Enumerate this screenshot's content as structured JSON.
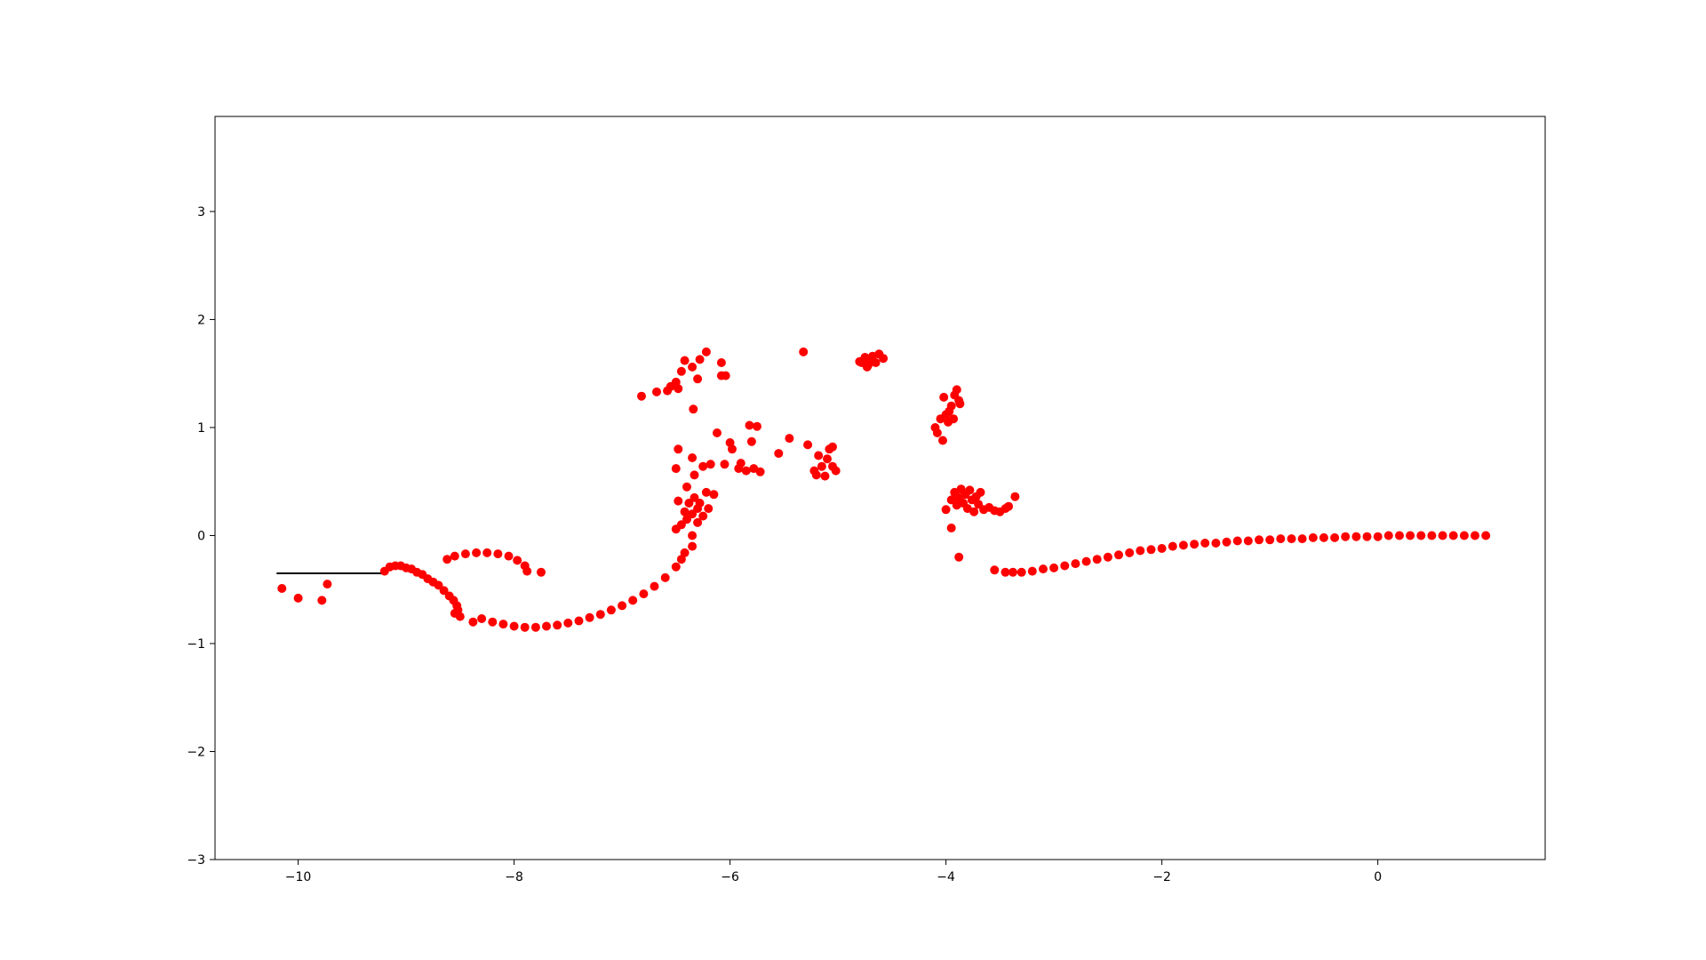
{
  "chart_data": {
    "type": "scatter",
    "title": "",
    "xlabel": "",
    "ylabel": "",
    "xlim": [
      -10.77,
      1.55
    ],
    "ylim": [
      -3.0,
      3.88
    ],
    "grid": false,
    "xticks": [
      {
        "value": -10,
        "label": "−10"
      },
      {
        "value": -8,
        "label": "−8"
      },
      {
        "value": -6,
        "label": "−6"
      },
      {
        "value": -4,
        "label": "−4"
      },
      {
        "value": -2,
        "label": "−2"
      },
      {
        "value": 0,
        "label": "0"
      }
    ],
    "yticks": [
      {
        "value": -3,
        "label": "−3"
      },
      {
        "value": -2,
        "label": "−2"
      },
      {
        "value": -1,
        "label": "−1"
      },
      {
        "value": 0,
        "label": "0"
      },
      {
        "value": 1,
        "label": "1"
      },
      {
        "value": 2,
        "label": "2"
      },
      {
        "value": 3,
        "label": "3"
      }
    ],
    "colors": {
      "points": "#ff0000",
      "line": "#000000",
      "axes": "#000000"
    },
    "series": [
      {
        "kind": "line",
        "points": [
          [
            -10.2,
            -0.35
          ],
          [
            -9.22,
            -0.35
          ]
        ]
      },
      {
        "kind": "scatter",
        "points": [
          [
            -10.15,
            -0.49
          ],
          [
            -10.0,
            -0.58
          ],
          [
            -9.78,
            -0.6
          ],
          [
            -9.73,
            -0.45
          ],
          [
            -9.2,
            -0.33
          ],
          [
            -9.15,
            -0.29
          ],
          [
            -9.1,
            -0.28
          ],
          [
            -9.05,
            -0.28
          ],
          [
            -9.0,
            -0.3
          ],
          [
            -8.95,
            -0.31
          ],
          [
            -8.9,
            -0.34
          ],
          [
            -8.85,
            -0.36
          ],
          [
            -8.8,
            -0.4
          ],
          [
            -8.75,
            -0.43
          ],
          [
            -8.7,
            -0.46
          ],
          [
            -8.65,
            -0.51
          ],
          [
            -8.6,
            -0.56
          ],
          [
            -8.56,
            -0.6
          ],
          [
            -8.53,
            -0.65
          ],
          [
            -8.52,
            -0.69
          ],
          [
            -8.55,
            -0.72
          ],
          [
            -8.5,
            -0.75
          ],
          [
            -8.38,
            -0.8
          ],
          [
            -8.3,
            -0.77
          ],
          [
            -8.2,
            -0.8
          ],
          [
            -8.1,
            -0.82
          ],
          [
            -8.0,
            -0.84
          ],
          [
            -7.9,
            -0.85
          ],
          [
            -7.8,
            -0.85
          ],
          [
            -7.7,
            -0.84
          ],
          [
            -7.6,
            -0.83
          ],
          [
            -7.5,
            -0.81
          ],
          [
            -7.4,
            -0.79
          ],
          [
            -7.3,
            -0.76
          ],
          [
            -7.2,
            -0.73
          ],
          [
            -7.1,
            -0.69
          ],
          [
            -7.0,
            -0.65
          ],
          [
            -6.9,
            -0.6
          ],
          [
            -6.8,
            -0.54
          ],
          [
            -6.7,
            -0.47
          ],
          [
            -6.6,
            -0.39
          ],
          [
            -6.5,
            -0.29
          ],
          [
            -6.45,
            -0.22
          ],
          [
            -6.42,
            -0.16
          ],
          [
            -8.62,
            -0.22
          ],
          [
            -8.55,
            -0.19
          ],
          [
            -8.45,
            -0.17
          ],
          [
            -8.35,
            -0.16
          ],
          [
            -8.25,
            -0.16
          ],
          [
            -8.15,
            -0.17
          ],
          [
            -8.05,
            -0.19
          ],
          [
            -7.97,
            -0.23
          ],
          [
            -7.9,
            -0.28
          ],
          [
            -7.88,
            -0.33
          ],
          [
            -7.75,
            -0.34
          ],
          [
            -6.5,
            0.06
          ],
          [
            -6.45,
            0.1
          ],
          [
            -6.4,
            0.15
          ],
          [
            -6.35,
            0.2
          ],
          [
            -6.3,
            0.25
          ],
          [
            -6.38,
            0.3
          ],
          [
            -6.42,
            0.22
          ],
          [
            -6.33,
            0.35
          ],
          [
            -6.28,
            0.3
          ],
          [
            -6.25,
            0.18
          ],
          [
            -6.22,
            0.4
          ],
          [
            -6.48,
            0.32
          ],
          [
            -6.4,
            0.45
          ],
          [
            -6.35,
            0.0
          ],
          [
            -6.35,
            -0.1
          ],
          [
            -6.3,
            0.12
          ],
          [
            -6.2,
            0.25
          ],
          [
            -6.15,
            0.38
          ],
          [
            -6.5,
            0.62
          ],
          [
            -6.48,
            0.8
          ],
          [
            -6.35,
            0.72
          ],
          [
            -6.33,
            0.56
          ],
          [
            -6.25,
            0.64
          ],
          [
            -6.18,
            0.66
          ],
          [
            -6.12,
            0.95
          ],
          [
            -6.05,
            0.66
          ],
          [
            -6.0,
            0.86
          ],
          [
            -5.98,
            0.8
          ],
          [
            -5.92,
            0.62
          ],
          [
            -5.9,
            0.67
          ],
          [
            -5.85,
            0.6
          ],
          [
            -5.82,
            1.02
          ],
          [
            -5.8,
            0.87
          ],
          [
            -5.78,
            0.62
          ],
          [
            -5.75,
            1.01
          ],
          [
            -5.72,
            0.59
          ],
          [
            -6.82,
            1.29
          ],
          [
            -6.68,
            1.33
          ],
          [
            -6.58,
            1.34
          ],
          [
            -6.55,
            1.38
          ],
          [
            -6.5,
            1.42
          ],
          [
            -6.48,
            1.36
          ],
          [
            -6.45,
            1.52
          ],
          [
            -6.42,
            1.62
          ],
          [
            -6.35,
            1.56
          ],
          [
            -6.3,
            1.45
          ],
          [
            -6.28,
            1.63
          ],
          [
            -6.22,
            1.7
          ],
          [
            -6.08,
            1.6
          ],
          [
            -6.08,
            1.48
          ],
          [
            -6.04,
            1.48
          ],
          [
            -6.34,
            1.17
          ],
          [
            -5.55,
            0.76
          ],
          [
            -5.45,
            0.9
          ],
          [
            -5.32,
            1.7
          ],
          [
            -5.28,
            0.84
          ],
          [
            -5.22,
            0.6
          ],
          [
            -5.2,
            0.56
          ],
          [
            -5.18,
            0.74
          ],
          [
            -5.15,
            0.64
          ],
          [
            -5.12,
            0.55
          ],
          [
            -5.1,
            0.71
          ],
          [
            -5.08,
            0.8
          ],
          [
            -5.05,
            0.82
          ],
          [
            -5.05,
            0.64
          ],
          [
            -5.02,
            0.6
          ],
          [
            -4.8,
            1.61
          ],
          [
            -4.75,
            1.65
          ],
          [
            -4.72,
            1.58
          ],
          [
            -4.7,
            1.63
          ],
          [
            -4.68,
            1.66
          ],
          [
            -4.65,
            1.6
          ],
          [
            -4.62,
            1.68
          ],
          [
            -4.58,
            1.64
          ],
          [
            -4.78,
            1.6
          ],
          [
            -4.73,
            1.56
          ],
          [
            -4.1,
            1.0
          ],
          [
            -4.08,
            0.95
          ],
          [
            -4.05,
            1.08
          ],
          [
            -4.03,
            0.88
          ],
          [
            -4.02,
            1.28
          ],
          [
            -4.0,
            1.12
          ],
          [
            -3.98,
            1.05
          ],
          [
            -3.97,
            1.15
          ],
          [
            -3.95,
            1.2
          ],
          [
            -3.93,
            1.08
          ],
          [
            -3.92,
            1.3
          ],
          [
            -3.9,
            1.35
          ],
          [
            -3.88,
            1.25
          ],
          [
            -3.87,
            1.22
          ],
          [
            -4.0,
            0.24
          ],
          [
            -3.95,
            0.33
          ],
          [
            -3.92,
            0.4
          ],
          [
            -3.9,
            0.28
          ],
          [
            -3.88,
            0.35
          ],
          [
            -3.86,
            0.43
          ],
          [
            -3.84,
            0.3
          ],
          [
            -3.82,
            0.38
          ],
          [
            -3.8,
            0.25
          ],
          [
            -3.78,
            0.42
          ],
          [
            -3.76,
            0.33
          ],
          [
            -3.74,
            0.22
          ],
          [
            -3.72,
            0.36
          ],
          [
            -3.7,
            0.29
          ],
          [
            -3.68,
            0.4
          ],
          [
            -3.65,
            0.24
          ],
          [
            -3.6,
            0.26
          ],
          [
            -3.55,
            0.23
          ],
          [
            -3.5,
            0.22
          ],
          [
            -3.45,
            0.25
          ],
          [
            -3.42,
            0.27
          ],
          [
            -3.36,
            0.36
          ],
          [
            -3.95,
            0.07
          ],
          [
            -3.88,
            -0.2
          ],
          [
            -3.55,
            -0.32
          ],
          [
            -3.45,
            -0.34
          ],
          [
            -3.38,
            -0.34
          ],
          [
            -3.3,
            -0.34
          ],
          [
            -3.2,
            -0.33
          ],
          [
            -3.1,
            -0.31
          ],
          [
            -3.0,
            -0.3
          ],
          [
            -2.9,
            -0.28
          ],
          [
            -2.8,
            -0.26
          ],
          [
            -2.7,
            -0.24
          ],
          [
            -2.6,
            -0.22
          ],
          [
            -2.5,
            -0.2
          ],
          [
            -2.4,
            -0.18
          ],
          [
            -2.3,
            -0.16
          ],
          [
            -2.2,
            -0.14
          ],
          [
            -2.1,
            -0.13
          ],
          [
            -2.0,
            -0.12
          ],
          [
            -1.9,
            -0.1
          ],
          [
            -1.8,
            -0.09
          ],
          [
            -1.7,
            -0.08
          ],
          [
            -1.6,
            -0.07
          ],
          [
            -1.5,
            -0.07
          ],
          [
            -1.4,
            -0.06
          ],
          [
            -1.3,
            -0.05
          ],
          [
            -1.2,
            -0.05
          ],
          [
            -1.1,
            -0.04
          ],
          [
            -1.0,
            -0.04
          ],
          [
            -0.9,
            -0.03
          ],
          [
            -0.8,
            -0.03
          ],
          [
            -0.7,
            -0.03
          ],
          [
            -0.6,
            -0.02
          ],
          [
            -0.5,
            -0.02
          ],
          [
            -0.4,
            -0.02
          ],
          [
            -0.3,
            -0.01
          ],
          [
            -0.2,
            -0.01
          ],
          [
            -0.1,
            -0.01
          ],
          [
            0.0,
            -0.01
          ],
          [
            0.1,
            0.0
          ],
          [
            0.2,
            0.0
          ],
          [
            0.3,
            0.0
          ],
          [
            0.4,
            0.0
          ],
          [
            0.5,
            0.0
          ],
          [
            0.6,
            0.0
          ],
          [
            0.7,
            0.0
          ],
          [
            0.8,
            0.0
          ],
          [
            0.9,
            0.0
          ],
          [
            1.0,
            0.0
          ]
        ]
      }
    ]
  }
}
